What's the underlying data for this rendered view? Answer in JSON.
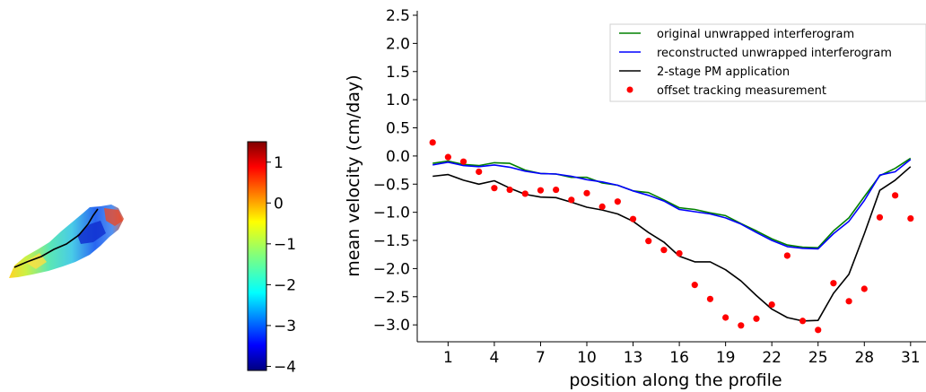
{
  "map_panel": {
    "colorbar": {
      "min": -4.1,
      "max": 1.5,
      "ticks": [
        1,
        0,
        -1,
        -2,
        -3,
        -4
      ],
      "tick_labels": [
        "1",
        "0",
        "−1",
        "−2",
        "−3",
        "−4"
      ],
      "colormap": "jet"
    }
  },
  "chart_data": {
    "type": "line",
    "title": "",
    "xlabel": "position along the profile",
    "ylabel": "mean velocity (cm/day)",
    "xlim": [
      -1,
      32
    ],
    "ylim": [
      -3.3,
      2.5
    ],
    "xticks": [
      1,
      4,
      7,
      10,
      13,
      16,
      19,
      22,
      25,
      28,
      31
    ],
    "yticks": [
      2.5,
      2.0,
      1.5,
      1.0,
      0.5,
      0.0,
      -0.5,
      -1.0,
      -1.5,
      -2.0,
      -2.5,
      -3.0
    ],
    "ytick_labels": [
      "2.5",
      "2.0",
      "1.5",
      "1.0",
      "0.5",
      "0.0",
      "−0.5",
      "−1.0",
      "−1.5",
      "−2.0",
      "−2.5",
      "−3.0"
    ],
    "legend_position": "top-right",
    "x": [
      0,
      1,
      2,
      3,
      4,
      5,
      6,
      7,
      8,
      9,
      10,
      11,
      12,
      13,
      14,
      15,
      16,
      17,
      18,
      19,
      20,
      21,
      22,
      23,
      24,
      25,
      26,
      27,
      28,
      29,
      30,
      31
    ],
    "series": [
      {
        "name": "original unwrapped interferogram",
        "kind": "line",
        "color": "#008000",
        "values": [
          -0.13,
          -0.09,
          -0.15,
          -0.17,
          -0.12,
          -0.13,
          -0.25,
          -0.31,
          -0.32,
          -0.38,
          -0.38,
          -0.48,
          -0.52,
          -0.62,
          -0.65,
          -0.78,
          -0.92,
          -0.95,
          -1.01,
          -1.06,
          -1.2,
          -1.33,
          -1.47,
          -1.58,
          -1.62,
          -1.63,
          -1.33,
          -1.1,
          -0.72,
          -0.35,
          -0.22,
          -0.04
        ]
      },
      {
        "name": "reconstructed unwrapped interferogram",
        "kind": "line",
        "color": "#0000ff",
        "values": [
          -0.16,
          -0.11,
          -0.17,
          -0.19,
          -0.16,
          -0.2,
          -0.27,
          -0.31,
          -0.32,
          -0.36,
          -0.42,
          -0.46,
          -0.52,
          -0.62,
          -0.7,
          -0.8,
          -0.95,
          -0.99,
          -1.03,
          -1.1,
          -1.21,
          -1.36,
          -1.5,
          -1.61,
          -1.64,
          -1.65,
          -1.38,
          -1.16,
          -0.79,
          -0.34,
          -0.28,
          -0.06
        ]
      },
      {
        "name": "2-stage PM application",
        "kind": "line",
        "color": "#000000",
        "values": [
          -0.36,
          -0.33,
          -0.43,
          -0.5,
          -0.44,
          -0.57,
          -0.68,
          -0.73,
          -0.74,
          -0.82,
          -0.91,
          -0.96,
          -1.03,
          -1.16,
          -1.36,
          -1.53,
          -1.78,
          -1.88,
          -1.88,
          -2.02,
          -2.22,
          -2.48,
          -2.72,
          -2.87,
          -2.93,
          -2.92,
          -2.44,
          -2.1,
          -1.38,
          -0.61,
          -0.43,
          -0.19
        ]
      },
      {
        "name": "offset tracking measurement",
        "kind": "scatter",
        "color": "#ff0000",
        "values": [
          0.24,
          -0.02,
          -0.1,
          -0.28,
          -0.57,
          -0.6,
          -0.67,
          -0.61,
          -0.6,
          -0.78,
          -0.66,
          -0.9,
          -0.81,
          -1.12,
          -1.51,
          -1.67,
          -1.73,
          -2.29,
          -2.54,
          -2.87,
          -3.01,
          -2.89,
          -2.64,
          -1.77,
          -2.93,
          -3.09,
          -2.26,
          -2.58,
          -2.36,
          -1.09,
          -0.7,
          -1.11
        ]
      }
    ]
  }
}
